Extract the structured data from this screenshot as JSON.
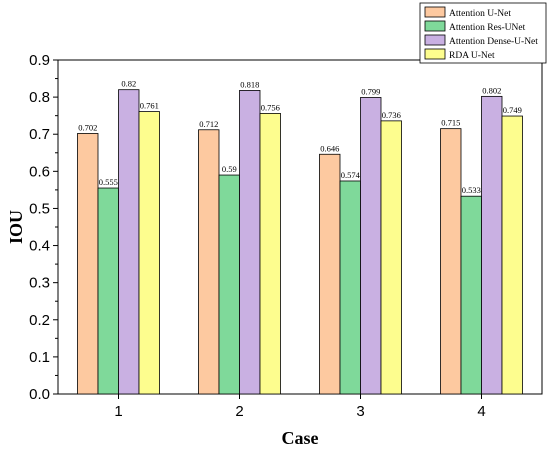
{
  "chart_data": {
    "type": "bar",
    "title": "",
    "xlabel": "Case",
    "ylabel": "IOU",
    "categories": [
      "1",
      "2",
      "3",
      "4"
    ],
    "ylim": [
      0,
      0.9
    ],
    "yticks": [
      "0.0",
      "0.1",
      "0.2",
      "0.3",
      "0.4",
      "0.5",
      "0.6",
      "0.7",
      "0.8",
      "0.9"
    ],
    "grid": false,
    "legend_position": "top-right",
    "series": [
      {
        "name": "Attention U-Net",
        "color": "#fdc9a0",
        "values": [
          0.702,
          0.712,
          0.646,
          0.715
        ],
        "labels": [
          "0.702",
          "0.712",
          "0.646",
          "0.715"
        ]
      },
      {
        "name": "Attention Res-UNet",
        "color": "#7fd99a",
        "values": [
          0.555,
          0.59,
          0.574,
          0.533
        ],
        "labels": [
          "0.555",
          "0.59",
          "0.574",
          "0.533"
        ]
      },
      {
        "name": "Attention Dense-U-Net",
        "color": "#c9b0e2",
        "values": [
          0.82,
          0.818,
          0.799,
          0.802
        ],
        "labels": [
          "0.82",
          "0.818",
          "0.799",
          "0.802"
        ]
      },
      {
        "name": "RDA U-Net",
        "color": "#fdfd8e",
        "values": [
          0.761,
          0.756,
          0.736,
          0.749
        ],
        "labels": [
          "0.761",
          "0.756",
          "0.736",
          "0.749"
        ]
      }
    ]
  }
}
